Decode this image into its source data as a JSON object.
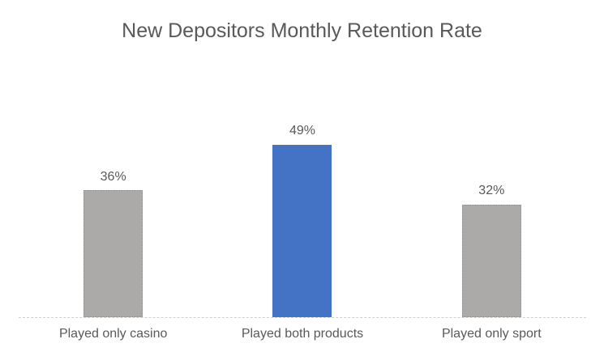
{
  "chart_data": {
    "type": "bar",
    "title": "New Depositors Monthly Retention Rate",
    "categories": [
      "Played only casino",
      "Played both products",
      "Played only sport"
    ],
    "values": [
      36,
      49,
      32
    ],
    "data_labels": [
      "36%",
      "49%",
      "32%"
    ],
    "series_colors": [
      "#ACA9A9",
      "#4472C4",
      "#ACA9A9"
    ],
    "bar_outline_colors": [
      "#8F8B8B",
      null,
      "#8F8B8B"
    ],
    "xlabel": "",
    "ylabel": "",
    "ylim": [
      0,
      70
    ],
    "grid": false,
    "legend": false,
    "text_color": "#595959",
    "axis_line_color": "#D9D9D9"
  }
}
